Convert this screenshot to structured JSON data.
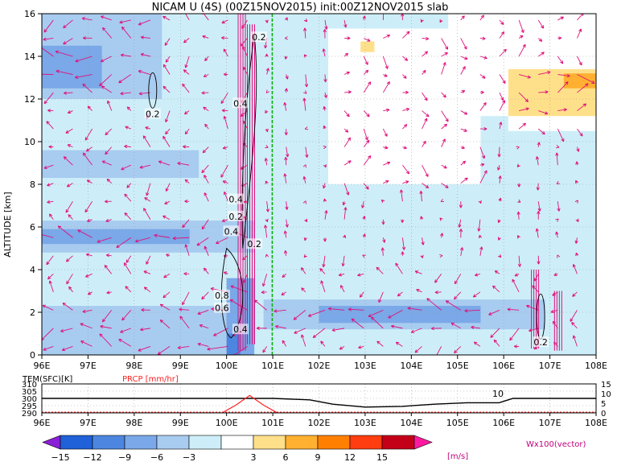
{
  "title": "NICAM U (4S) (00Z15NOV2015) init:00Z12NOV2015 slab",
  "chart_data": [
    {
      "type": "heatmap",
      "title": "NICAM U (4S) (00Z15NOV2015) init:00Z12NOV2015 slab",
      "ylabel": "ALTITUDE [km]",
      "xlim": [
        96,
        108
      ],
      "ylim": [
        0,
        16
      ],
      "x_ticks": [
        "96E",
        "97E",
        "98E",
        "99E",
        "100E",
        "101E",
        "102E",
        "103E",
        "104E",
        "105E",
        "106E",
        "107E",
        "108E"
      ],
      "y_ticks": [
        "0",
        "2",
        "4",
        "6",
        "8",
        "10",
        "12",
        "14",
        "16"
      ],
      "grid": true,
      "field": [
        {
          "x0": 96,
          "x1": 108,
          "y0": 0,
          "y1": 16,
          "value": 0
        },
        {
          "x0": 96,
          "x1": 100.6,
          "y0": 0,
          "y1": 16,
          "value": -3
        },
        {
          "x0": 96,
          "x1": 98.6,
          "y0": 12,
          "y1": 16,
          "value": -6
        },
        {
          "x0": 96,
          "x1": 97.3,
          "y0": 12.5,
          "y1": 14.5,
          "value": -9
        },
        {
          "x0": 96,
          "x1": 99.4,
          "y0": 8.3,
          "y1": 9.6,
          "value": -6
        },
        {
          "x0": 96,
          "x1": 100.6,
          "y0": 4.8,
          "y1": 6.3,
          "value": -6
        },
        {
          "x0": 96,
          "x1": 99.2,
          "y0": 5.2,
          "y1": 5.9,
          "value": -9
        },
        {
          "x0": 96,
          "x1": 100.6,
          "y0": 0,
          "y1": 2.3,
          "value": -6
        },
        {
          "x0": 100.6,
          "x1": 108,
          "y0": 0,
          "y1": 4.2,
          "value": -3
        },
        {
          "x0": 100.8,
          "x1": 106.9,
          "y0": 1.2,
          "y1": 2.6,
          "value": -6
        },
        {
          "x0": 102.0,
          "x1": 105.5,
          "y0": 1.5,
          "y1": 2.3,
          "value": -9
        },
        {
          "x0": 100.0,
          "x1": 100.6,
          "y0": 0,
          "y1": 3.6,
          "value": -9
        },
        {
          "x0": 100.0,
          "x1": 100.3,
          "y0": 0,
          "y1": 1.0,
          "value": -12
        },
        {
          "x0": 102.2,
          "x1": 105.5,
          "y0": 8.0,
          "y1": 15.3,
          "value": 3
        },
        {
          "x0": 104.8,
          "x1": 108,
          "y0": 11.2,
          "y1": 16,
          "value": 3
        },
        {
          "x0": 106.1,
          "x1": 108,
          "y0": 10.5,
          "y1": 16,
          "value": 3
        },
        {
          "x0": 106.1,
          "x1": 108,
          "y0": 11.2,
          "y1": 13.4,
          "value": 6
        },
        {
          "x0": 107.3,
          "x1": 108,
          "y0": 12.5,
          "y1": 13.2,
          "value": 9
        },
        {
          "x0": 102.9,
          "x1": 103.2,
          "y0": 14.2,
          "y1": 14.7,
          "value": 6
        }
      ],
      "contours": [
        {
          "label": "0.2",
          "x": 98.4,
          "y": 11.3
        },
        {
          "label": "0.2",
          "x": 100.7,
          "y": 14.9
        },
        {
          "label": "0.4",
          "x": 100.3,
          "y": 11.8
        },
        {
          "label": "0.4",
          "x": 100.2,
          "y": 7.3
        },
        {
          "label": "0.2",
          "x": 100.2,
          "y": 6.5
        },
        {
          "label": "0.4",
          "x": 100.1,
          "y": 5.8
        },
        {
          "label": "0.2",
          "x": 100.6,
          "y": 5.2
        },
        {
          "label": "0.8",
          "x": 99.9,
          "y": 2.8
        },
        {
          "label": "0.6",
          "x": 99.9,
          "y": 2.2
        },
        {
          "label": "0.4",
          "x": 100.3,
          "y": 1.2
        },
        {
          "label": "0.2",
          "x": 106.8,
          "y": 0.6
        }
      ],
      "vector_label": "Wx100(vector)"
    },
    {
      "type": "line",
      "labels": [
        "TEM(SFC)[K]",
        "PRCP [mm/hr]"
      ],
      "y_ticks_left": [
        "310",
        "305",
        "300",
        "295",
        "290"
      ],
      "y_ticks_right": [
        "15",
        "10",
        "5",
        "0"
      ],
      "x_ticks": [
        "96E",
        "97E",
        "98E",
        "99E",
        "100E",
        "101E",
        "102E",
        "103E",
        "104E",
        "105E",
        "106E",
        "107E",
        "108E"
      ],
      "xlim": [
        96,
        108
      ],
      "annotation": "10",
      "series": [
        {
          "name": "TEM(SFC)[K]",
          "x": [
            96,
            97,
            98,
            99,
            100,
            101,
            101.8,
            102.3,
            103,
            103.8,
            104.5,
            105.2,
            105.9,
            106.2,
            107,
            108
          ],
          "y": [
            300,
            300,
            300,
            300,
            300,
            300,
            299,
            296,
            294,
            294.5,
            296,
            297,
            297,
            300,
            300,
            300
          ]
        },
        {
          "name": "PRCP [mm/hr]",
          "x": [
            96,
            99.9,
            100.2,
            100.5,
            100.8,
            101.1,
            108
          ],
          "y": [
            0,
            0,
            4,
            9,
            4,
            0,
            0
          ]
        }
      ]
    }
  ],
  "colorbar": {
    "labels": [
      "−15",
      "−12",
      "−9",
      "−6",
      "−3",
      "3",
      "6",
      "9",
      "12",
      "15"
    ],
    "unit": "[m/s]",
    "colors": [
      "#8a1fd6",
      "#2060d8",
      "#4c86e0",
      "#7aa8e8",
      "#a8ccf0",
      "#cdeef8",
      "#ffffff",
      "#ffe08a",
      "#ffb030",
      "#ff8000",
      "#ff3d10",
      "#c40018",
      "#ff1aa0"
    ]
  },
  "colors": {
    "vector": "#e0107a",
    "contour": "#000000",
    "temp_line": "#000000",
    "prcp_line": "#ff2020",
    "reference_line": "#00b000"
  }
}
